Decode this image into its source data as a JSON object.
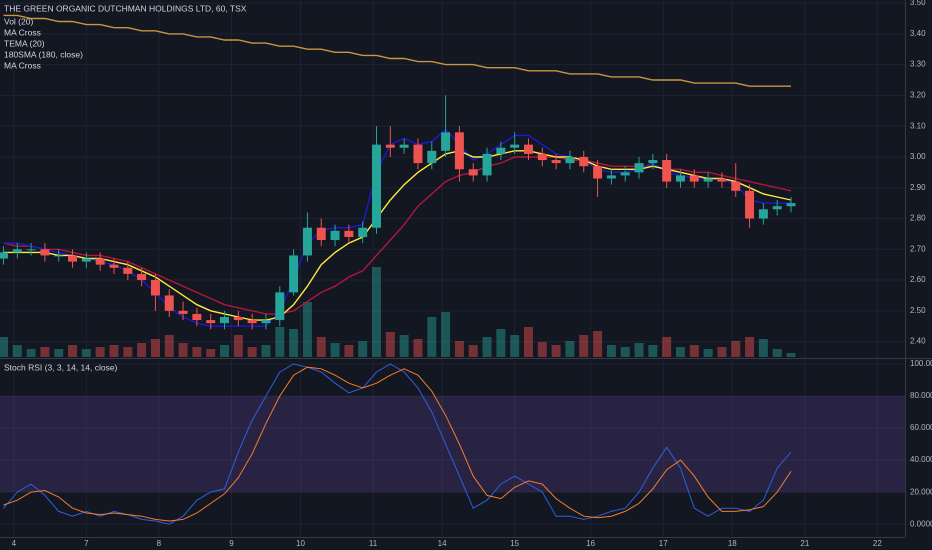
{
  "chart_data": [
    {
      "type": "candlestick",
      "title": "THE GREEN ORGANIC DUTCHMAN HOLDINGS LTD, 60, TSX",
      "indicators": [
        "Vol (20)",
        "MA Cross",
        "TEMA (20)",
        "180SMA (180, close)",
        "MA Cross"
      ],
      "x": [
        0,
        2,
        4,
        6,
        8,
        10,
        12,
        14,
        16,
        18,
        20,
        22,
        24,
        26,
        28,
        30,
        32,
        34,
        36,
        38,
        40,
        42,
        44,
        46,
        48,
        50,
        52,
        54,
        56,
        58,
        60,
        62,
        64,
        66,
        68,
        70,
        72,
        74,
        76,
        78,
        80,
        82,
        84,
        86,
        88,
        90,
        92,
        94,
        96,
        98,
        100,
        102,
        104,
        106,
        108,
        110,
        112,
        114
      ],
      "open": [
        2.67,
        2.69,
        2.7,
        2.7,
        2.68,
        2.68,
        2.66,
        2.67,
        2.65,
        2.64,
        2.62,
        2.6,
        2.55,
        2.5,
        2.49,
        2.47,
        2.46,
        2.48,
        2.47,
        2.46,
        2.47,
        2.56,
        2.68,
        2.77,
        2.73,
        2.76,
        2.74,
        2.77,
        3.04,
        3.03,
        3.04,
        2.98,
        3.02,
        3.08,
        2.96,
        2.94,
        3.01,
        3.03,
        3.04,
        3.01,
        2.99,
        2.98,
        3.0,
        2.97,
        2.93,
        2.94,
        2.95,
        2.98,
        2.99,
        2.92,
        2.94,
        2.92,
        2.93,
        2.92,
        2.89,
        2.8,
        2.83,
        2.84
      ],
      "high": [
        2.71,
        2.72,
        2.72,
        2.72,
        2.7,
        2.7,
        2.69,
        2.69,
        2.67,
        2.66,
        2.64,
        2.62,
        2.57,
        2.53,
        2.51,
        2.49,
        2.5,
        2.5,
        2.49,
        2.49,
        2.58,
        2.7,
        2.82,
        2.8,
        2.78,
        2.78,
        2.79,
        3.1,
        3.1,
        3.06,
        3.06,
        3.05,
        3.2,
        3.1,
        2.98,
        3.03,
        3.05,
        3.08,
        3.06,
        3.03,
        3.01,
        3.02,
        3.02,
        2.99,
        2.96,
        2.97,
        3.0,
        3.01,
        3.01,
        2.96,
        2.96,
        2.95,
        2.95,
        2.98,
        2.91,
        2.85,
        2.86,
        2.87
      ],
      "low": [
        2.65,
        2.67,
        2.68,
        2.66,
        2.66,
        2.64,
        2.64,
        2.63,
        2.62,
        2.6,
        2.58,
        2.5,
        2.48,
        2.47,
        2.45,
        2.44,
        2.44,
        2.45,
        2.44,
        2.44,
        2.45,
        2.55,
        2.66,
        2.71,
        2.71,
        2.72,
        2.72,
        2.75,
        3.0,
        3.01,
        2.96,
        2.96,
        3.0,
        2.92,
        2.92,
        2.92,
        2.99,
        3.01,
        2.99,
        2.97,
        2.96,
        2.96,
        2.95,
        2.87,
        2.91,
        2.92,
        2.93,
        2.96,
        2.9,
        2.9,
        2.9,
        2.9,
        2.9,
        2.87,
        2.77,
        2.78,
        2.81,
        2.82
      ],
      "close": [
        2.69,
        2.7,
        2.7,
        2.68,
        2.68,
        2.66,
        2.67,
        2.65,
        2.64,
        2.62,
        2.6,
        2.55,
        2.5,
        2.49,
        2.47,
        2.46,
        2.48,
        2.47,
        2.46,
        2.47,
        2.56,
        2.68,
        2.77,
        2.73,
        2.76,
        2.74,
        2.77,
        3.04,
        3.03,
        3.04,
        2.98,
        3.02,
        3.08,
        2.96,
        2.94,
        3.01,
        3.03,
        3.04,
        3.01,
        2.99,
        2.98,
        3.0,
        2.97,
        2.93,
        2.94,
        2.95,
        2.98,
        2.99,
        2.92,
        2.94,
        2.92,
        2.93,
        2.92,
        2.89,
        2.8,
        2.83,
        2.84,
        2.85
      ],
      "volume": [
        20,
        12,
        8,
        10,
        8,
        12,
        8,
        10,
        12,
        10,
        14,
        18,
        22,
        14,
        10,
        8,
        12,
        22,
        10,
        12,
        30,
        28,
        55,
        20,
        14,
        12,
        16,
        90,
        25,
        22,
        18,
        40,
        45,
        16,
        12,
        20,
        28,
        22,
        30,
        15,
        12,
        16,
        22,
        26,
        12,
        10,
        14,
        12,
        20,
        10,
        12,
        8,
        10,
        16,
        20,
        18,
        8,
        4
      ],
      "up_color": "#26a69a",
      "down_color": "#ef5350",
      "overlays": [
        {
          "color": "#c8963e",
          "values": [
            3.46,
            3.46,
            3.45,
            3.45,
            3.44,
            3.44,
            3.43,
            3.43,
            3.42,
            3.42,
            3.41,
            3.41,
            3.4,
            3.4,
            3.39,
            3.39,
            3.38,
            3.38,
            3.37,
            3.37,
            3.36,
            3.36,
            3.35,
            3.35,
            3.34,
            3.34,
            3.33,
            3.33,
            3.32,
            3.32,
            3.31,
            3.31,
            3.3,
            3.3,
            3.3,
            3.29,
            3.29,
            3.29,
            3.28,
            3.28,
            3.28,
            3.27,
            3.27,
            3.27,
            3.26,
            3.26,
            3.26,
            3.25,
            3.25,
            3.25,
            3.24,
            3.24,
            3.24,
            3.24,
            3.23,
            3.23,
            3.23,
            3.23
          ]
        },
        {
          "color": "#b2163a",
          "values": [
            2.72,
            2.71,
            2.71,
            2.7,
            2.7,
            2.69,
            2.68,
            2.68,
            2.67,
            2.66,
            2.64,
            2.62,
            2.6,
            2.58,
            2.56,
            2.54,
            2.52,
            2.51,
            2.5,
            2.49,
            2.49,
            2.5,
            2.53,
            2.56,
            2.58,
            2.61,
            2.63,
            2.68,
            2.73,
            2.78,
            2.84,
            2.88,
            2.92,
            2.94,
            2.95,
            2.97,
            2.98,
            3.0,
            3.0,
            3.0,
            3.0,
            2.99,
            2.99,
            2.98,
            2.97,
            2.97,
            2.97,
            2.97,
            2.96,
            2.96,
            2.95,
            2.95,
            2.94,
            2.93,
            2.92,
            2.91,
            2.9,
            2.89
          ]
        },
        {
          "color": "#1a1ad0",
          "values": [
            2.72,
            2.72,
            2.71,
            2.7,
            2.69,
            2.68,
            2.67,
            2.66,
            2.65,
            2.63,
            2.6,
            2.56,
            2.51,
            2.48,
            2.46,
            2.45,
            2.45,
            2.45,
            2.45,
            2.45,
            2.5,
            2.6,
            2.72,
            2.76,
            2.77,
            2.77,
            2.78,
            2.95,
            3.04,
            3.06,
            3.04,
            3.05,
            3.09,
            3.04,
            2.99,
            3.01,
            3.04,
            3.07,
            3.07,
            3.04,
            3.01,
            3.0,
            2.99,
            2.96,
            2.95,
            2.95,
            2.96,
            2.98,
            2.95,
            2.94,
            2.93,
            2.93,
            2.93,
            2.91,
            2.86,
            2.85,
            2.85,
            2.85
          ]
        },
        {
          "color": "#ffeb3b",
          "values": [
            2.69,
            2.69,
            2.69,
            2.69,
            2.68,
            2.68,
            2.67,
            2.67,
            2.66,
            2.65,
            2.63,
            2.61,
            2.58,
            2.55,
            2.52,
            2.5,
            2.49,
            2.48,
            2.47,
            2.47,
            2.48,
            2.52,
            2.58,
            2.65,
            2.69,
            2.72,
            2.74,
            2.8,
            2.86,
            2.91,
            2.95,
            2.98,
            3.01,
            3.02,
            3.0,
            3.0,
            3.01,
            3.02,
            3.02,
            3.01,
            3.0,
            3.0,
            2.99,
            2.97,
            2.96,
            2.96,
            2.96,
            2.97,
            2.96,
            2.95,
            2.94,
            2.93,
            2.93,
            2.92,
            2.9,
            2.88,
            2.87,
            2.86
          ]
        }
      ],
      "xlim": [
        -0.5,
        130.5
      ],
      "xticks": [
        {
          "value": 1.5,
          "label": "4"
        },
        {
          "value": 12,
          "label": "7"
        },
        {
          "value": 22.5,
          "label": "8"
        },
        {
          "value": 33,
          "label": "9"
        },
        {
          "value": 43,
          "label": "10"
        },
        {
          "value": 53.5,
          "label": "11"
        },
        {
          "value": 63.5,
          "label": "14"
        },
        {
          "value": 74,
          "label": "15"
        },
        {
          "value": 85,
          "label": "16"
        },
        {
          "value": 95.5,
          "label": "17"
        },
        {
          "value": 105.5,
          "label": "18"
        },
        {
          "value": 116,
          "label": "21"
        },
        {
          "value": 126.5,
          "label": "22"
        }
      ],
      "ylim": [
        2.35,
        3.51
      ],
      "yticks": [
        {
          "value": 2.4,
          "label": "2.40"
        },
        {
          "value": 2.5,
          "label": "2.50"
        },
        {
          "value": 2.6,
          "label": "2.60"
        },
        {
          "value": 2.7,
          "label": "2.70"
        },
        {
          "value": 2.8,
          "label": "2.80"
        },
        {
          "value": 2.9,
          "label": "2.90"
        },
        {
          "value": 3.0,
          "label": "3.00"
        },
        {
          "value": 3.1,
          "label": "3.10"
        },
        {
          "value": 3.2,
          "label": "3.20"
        },
        {
          "value": 3.3,
          "label": "3.30"
        },
        {
          "value": 3.4,
          "label": "3.40"
        },
        {
          "value": 3.5,
          "label": "3.50"
        }
      ],
      "grid": true
    },
    {
      "type": "line",
      "title": "Stoch RSI (3, 3, 14, 14, close)",
      "series": [
        {
          "color": "#2f5fe0",
          "values": [
            10,
            20,
            25,
            18,
            8,
            5,
            8,
            5,
            8,
            6,
            3,
            2,
            0,
            5,
            15,
            20,
            22,
            45,
            65,
            80,
            95,
            100,
            98,
            95,
            88,
            82,
            85,
            95,
            100,
            95,
            85,
            70,
            50,
            30,
            10,
            15,
            25,
            30,
            25,
            20,
            5,
            5,
            3,
            5,
            8,
            10,
            20,
            35,
            48,
            35,
            10,
            5,
            10,
            10,
            8,
            15,
            35,
            45
          ]
        },
        {
          "color": "#f57c2b",
          "values": [
            12,
            15,
            20,
            21,
            17,
            10,
            7,
            6,
            7,
            6,
            5,
            3,
            2,
            3,
            7,
            13,
            19,
            29,
            44,
            63,
            80,
            93,
            98,
            97,
            93,
            88,
            85,
            88,
            93,
            97,
            93,
            83,
            68,
            50,
            30,
            18,
            16,
            23,
            27,
            25,
            16,
            10,
            5,
            4,
            5,
            8,
            13,
            22,
            34,
            40,
            30,
            17,
            8,
            8,
            9,
            11,
            20,
            33
          ]
        }
      ],
      "band": [
        20,
        80
      ],
      "band_color": "#7e57c2",
      "ylim": [
        -8,
        102.5
      ],
      "yticks": [
        {
          "value": 0,
          "label": "0.0000"
        },
        {
          "value": 20,
          "label": "20.0000"
        },
        {
          "value": 40,
          "label": "40.0000"
        },
        {
          "value": 60,
          "label": "60.0000"
        },
        {
          "value": 80,
          "label": "80.0000"
        },
        {
          "value": 100,
          "label": "100.0000"
        }
      ],
      "grid": true
    }
  ]
}
